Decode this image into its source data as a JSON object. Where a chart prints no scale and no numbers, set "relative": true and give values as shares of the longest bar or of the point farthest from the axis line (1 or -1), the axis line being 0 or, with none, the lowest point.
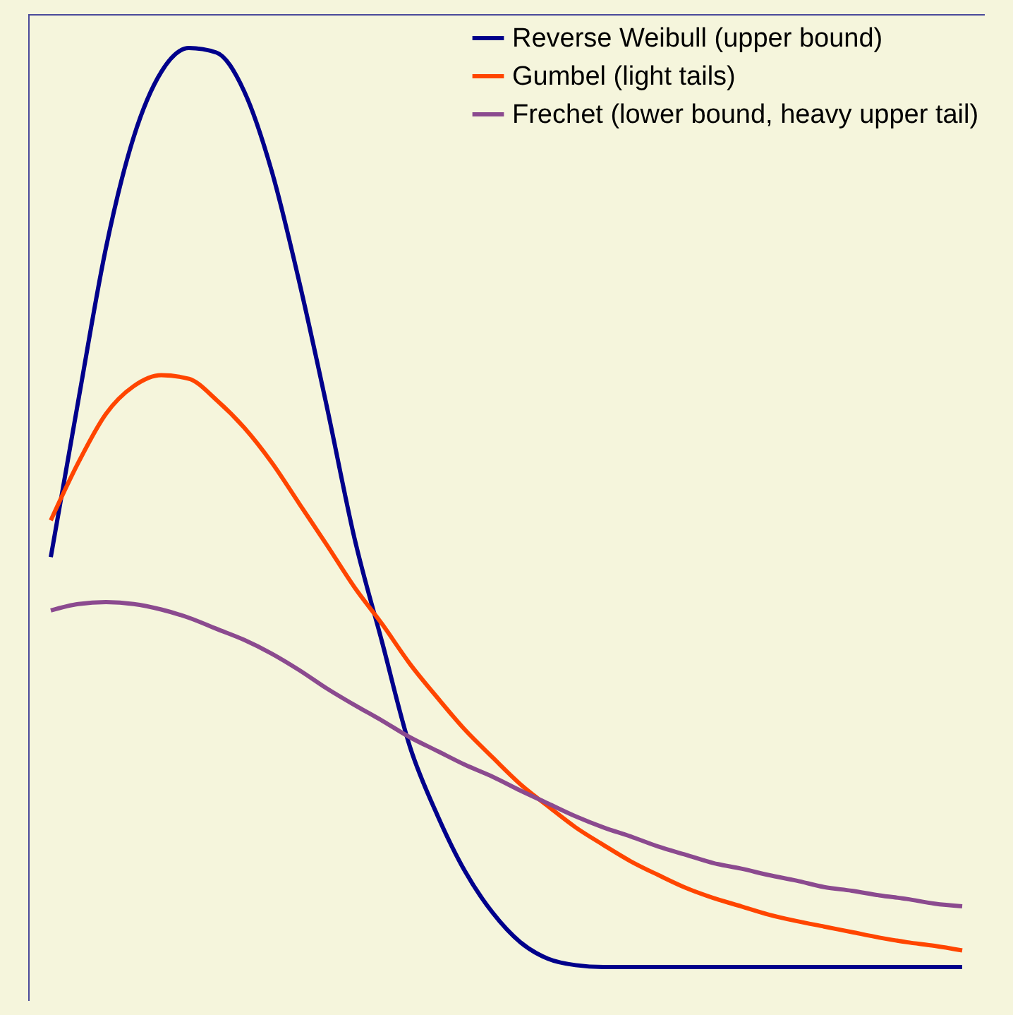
{
  "chart_data": {
    "type": "line",
    "relative": true,
    "legend": "top right",
    "categories": [
      null,
      null,
      null,
      null,
      null,
      null,
      null,
      null,
      null,
      null,
      null,
      null,
      null,
      null,
      null,
      null,
      null,
      null,
      null,
      null,
      null,
      null,
      null,
      null,
      null,
      null,
      null,
      null,
      null,
      null,
      null,
      null,
      null,
      null
    ],
    "series": [
      {
        "name": "Reverse Weibull (upper bound)",
        "color": "#00008b",
        "values": [
          0.446,
          0.617,
          0.783,
          0.903,
          0.974,
          1.0,
          0.995,
          0.953,
          0.866,
          0.745,
          0.609,
          0.466,
          0.353,
          0.24,
          0.165,
          0.104,
          0.059,
          0.027,
          0.009,
          0.002,
          0,
          0,
          0,
          0,
          0,
          0,
          0,
          0,
          0,
          0,
          0,
          0,
          0,
          0
        ]
      },
      {
        "name": "Gumbel (light tails)",
        "color": "#ff4500",
        "values": [
          0.486,
          0.549,
          0.602,
          0.632,
          0.644,
          0.64,
          0.617,
          0.587,
          0.549,
          0.504,
          0.459,
          0.413,
          0.373,
          0.33,
          0.293,
          0.258,
          0.228,
          0.199,
          0.175,
          0.152,
          0.133,
          0.115,
          0.1,
          0.086,
          0.075,
          0.066,
          0.057,
          0.05,
          0.044,
          0.038,
          0.032,
          0.027,
          0.023,
          0.018
        ]
      },
      {
        "name": "Frechet (lower bound, heavy upper tail)",
        "color": "#8b4a8f",
        "values": [
          0.388,
          0.395,
          0.397,
          0.395,
          0.389,
          0.38,
          0.368,
          0.356,
          0.341,
          0.323,
          0.303,
          0.285,
          0.268,
          0.25,
          0.235,
          0.22,
          0.207,
          0.192,
          0.178,
          0.164,
          0.152,
          0.142,
          0.131,
          0.122,
          0.113,
          0.107,
          0.1,
          0.094,
          0.087,
          0.083,
          0.078,
          0.074,
          0.069,
          0.066
        ]
      }
    ]
  }
}
